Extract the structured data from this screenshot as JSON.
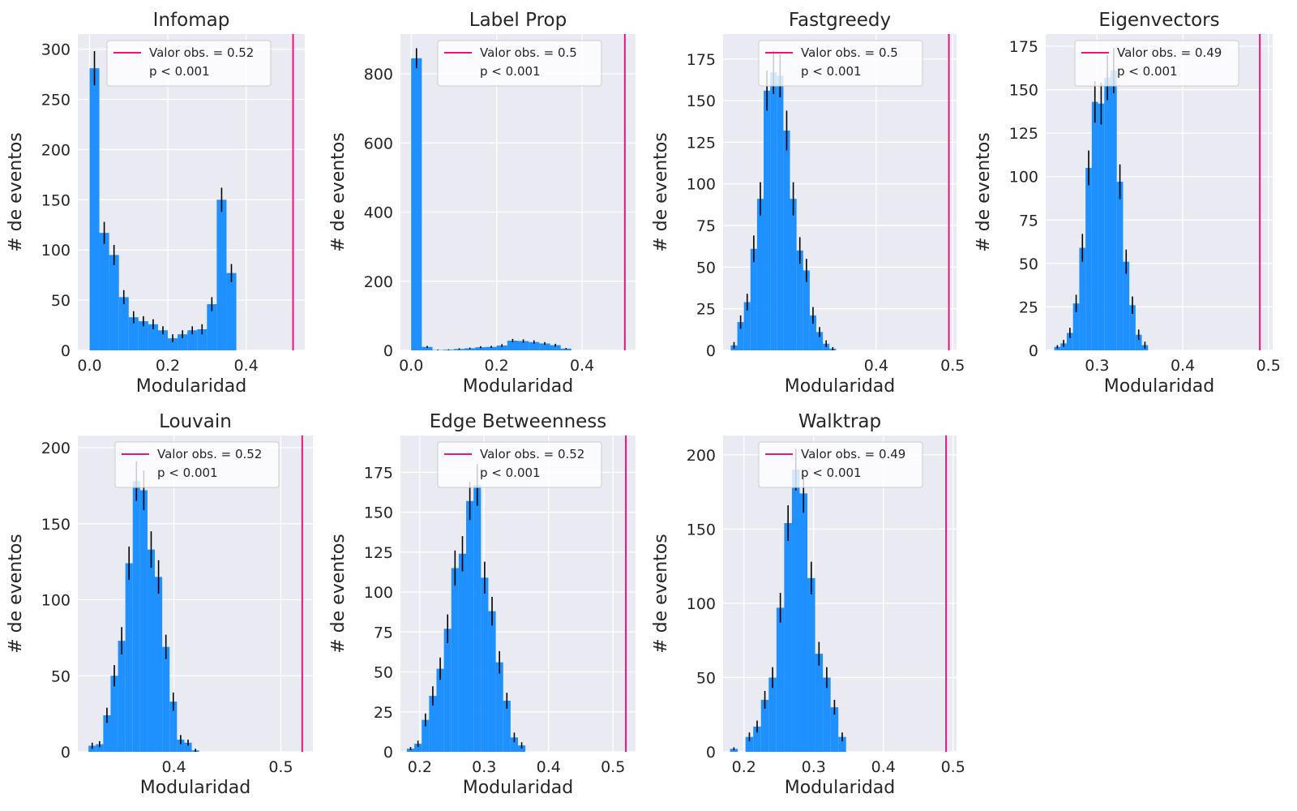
{
  "colors": {
    "bar": "#1e90ff",
    "obs_line": "#e8157f",
    "axes_bg": "#eaeaf2",
    "grid": "#ffffff",
    "errorbar": "#000000"
  },
  "chart_data": [
    {
      "type": "bar",
      "title": "Infomap",
      "xlabel": "Modularidad",
      "ylabel": "# de eventos",
      "xlim": [
        -0.03,
        0.55
      ],
      "ylim": [
        0,
        315
      ],
      "xticks": [
        0.0,
        0.2,
        0.4
      ],
      "xtick_labels": [
        "0.0",
        "0.2",
        "0.4"
      ],
      "yticks": [
        0,
        50,
        100,
        150,
        200,
        250,
        300
      ],
      "bin_start": 0.0,
      "bin_width": 0.025,
      "values": [
        281,
        117,
        95,
        53,
        33,
        29,
        26,
        20,
        12,
        16,
        20,
        21,
        46,
        150,
        77
      ],
      "errors": [
        17,
        11,
        10,
        7,
        6,
        5,
        5,
        4,
        4,
        4,
        4,
        5,
        7,
        12,
        9
      ],
      "observed_value": 0.52,
      "legend": {
        "label": "Valor obs. = 0.52",
        "pvalue": "p < 0.001",
        "position": "upper right"
      }
    },
    {
      "type": "bar",
      "title": "Label Prop",
      "xlabel": "Modularidad",
      "ylabel": "# de eventos",
      "xlim": [
        -0.025,
        0.525
      ],
      "ylim": [
        0,
        915
      ],
      "xticks": [
        0.0,
        0.2,
        0.4
      ],
      "xtick_labels": [
        "0.0",
        "0.2",
        "0.4"
      ],
      "yticks": [
        0,
        200,
        400,
        600,
        800
      ],
      "bin_start": 0.0,
      "bin_width": 0.025,
      "values": [
        845,
        10,
        1,
        2,
        4,
        6,
        9,
        10,
        14,
        28,
        27,
        24,
        20,
        15,
        5
      ],
      "errors": [
        29,
        3,
        1,
        1,
        2,
        2,
        3,
        3,
        4,
        5,
        5,
        5,
        4,
        4,
        2
      ],
      "observed_value": 0.5,
      "legend": {
        "label": "Valor obs. = 0.5",
        "pvalue": "p < 0.001",
        "position": "upper right"
      }
    },
    {
      "type": "bar",
      "title": "Fastgreedy",
      "xlabel": "Modularidad",
      "ylabel": "# de eventos",
      "xlim": [
        0.2,
        0.505
      ],
      "ylim": [
        0,
        190
      ],
      "xticks": [
        0.4,
        0.5
      ],
      "xtick_labels": [
        "0.4",
        "0.5"
      ],
      "yticks": [
        0,
        25,
        50,
        75,
        100,
        125,
        150,
        175
      ],
      "bin_start": 0.21,
      "bin_width": 0.0086,
      "values": [
        3,
        17,
        29,
        61,
        91,
        156,
        167,
        165,
        132,
        91,
        60,
        48,
        21,
        11,
        4,
        1
      ],
      "errors": [
        2,
        4,
        5,
        8,
        10,
        12,
        13,
        13,
        12,
        10,
        8,
        7,
        5,
        3,
        2,
        1
      ],
      "observed_value": 0.495,
      "legend": {
        "label": "Valor obs. = 0.5",
        "pvalue": "p < 0.001",
        "position": "upper right"
      }
    },
    {
      "type": "bar",
      "title": "Eigenvectors",
      "xlabel": "Modularidad",
      "ylabel": "# de eventos",
      "xlim": [
        0.24,
        0.505
      ],
      "ylim": [
        0,
        182
      ],
      "xticks": [
        0.3,
        0.4,
        0.5
      ],
      "xtick_labels": [
        "0.3",
        "0.4",
        "0.5"
      ],
      "yticks": [
        0,
        25,
        50,
        75,
        100,
        125,
        150,
        175
      ],
      "bin_start": 0.25,
      "bin_width": 0.0073,
      "values": [
        2,
        4,
        10,
        27,
        59,
        105,
        143,
        142,
        157,
        161,
        97,
        51,
        26,
        9,
        3
      ],
      "errors": [
        1,
        2,
        3,
        5,
        8,
        10,
        12,
        12,
        13,
        13,
        10,
        7,
        5,
        3,
        2
      ],
      "observed_value": 0.49,
      "legend": {
        "label": "Valor obs. = 0.49",
        "pvalue": "p < 0.001",
        "position": "upper right"
      }
    },
    {
      "type": "bar",
      "title": "Louvain",
      "xlabel": "Modularidad",
      "ylabel": "# de eventos",
      "xlim": [
        0.31,
        0.53
      ],
      "ylim": [
        0,
        208
      ],
      "xticks": [
        0.4,
        0.5
      ],
      "xtick_labels": [
        "0.4",
        "0.5"
      ],
      "yticks": [
        0,
        50,
        100,
        150,
        200
      ],
      "bin_start": 0.32,
      "bin_width": 0.0069,
      "values": [
        4,
        5,
        24,
        50,
        73,
        124,
        178,
        172,
        133,
        115,
        69,
        33,
        8,
        6,
        1
      ],
      "errors": [
        2,
        2,
        5,
        7,
        9,
        11,
        13,
        13,
        12,
        11,
        8,
        6,
        3,
        2,
        1
      ],
      "observed_value": 0.52,
      "legend": {
        "label": "Valor obs. = 0.52",
        "pvalue": "p < 0.001",
        "position": "upper right"
      }
    },
    {
      "type": "bar",
      "title": "Edge Betweenness",
      "xlabel": "Modularidad",
      "ylabel": "# de eventos",
      "xlim": [
        0.17,
        0.535
      ],
      "ylim": [
        0,
        198
      ],
      "xticks": [
        0.2,
        0.3,
        0.4,
        0.5
      ],
      "xtick_labels": [
        "0.2",
        "0.3",
        "0.4",
        "0.5"
      ],
      "yticks": [
        0,
        25,
        50,
        75,
        100,
        125,
        150,
        175
      ],
      "bin_start": 0.18,
      "bin_width": 0.0115,
      "values": [
        2,
        5,
        20,
        35,
        52,
        77,
        115,
        124,
        157,
        167,
        109,
        88,
        56,
        32,
        9,
        4
      ],
      "errors": [
        1,
        2,
        4,
        6,
        7,
        9,
        11,
        11,
        12,
        13,
        10,
        9,
        7,
        5,
        3,
        2
      ],
      "observed_value": 0.52,
      "legend": {
        "label": "Valor obs. = 0.52",
        "pvalue": "p < 0.001",
        "position": "upper right"
      }
    },
    {
      "type": "bar",
      "title": "Walktrap",
      "xlabel": "Modularidad",
      "ylabel": "# de eventos",
      "xlim": [
        0.17,
        0.505
      ],
      "ylim": [
        0,
        213
      ],
      "xticks": [
        0.2,
        0.3,
        0.4,
        0.5
      ],
      "xtick_labels": [
        "0.2",
        "0.3",
        "0.4",
        "0.5"
      ],
      "yticks": [
        0,
        50,
        100,
        150,
        200
      ],
      "bin_start": 0.18,
      "bin_width": 0.0111,
      "values": [
        2,
        0,
        10,
        17,
        35,
        50,
        97,
        154,
        190,
        174,
        117,
        66,
        50,
        30,
        10
      ],
      "errors": [
        1,
        0,
        3,
        4,
        6,
        7,
        10,
        12,
        14,
        13,
        11,
        8,
        7,
        5,
        3
      ],
      "observed_value": 0.49,
      "legend": {
        "label": "Valor obs. = 0.49",
        "pvalue": "p < 0.001",
        "position": "upper right"
      }
    }
  ]
}
